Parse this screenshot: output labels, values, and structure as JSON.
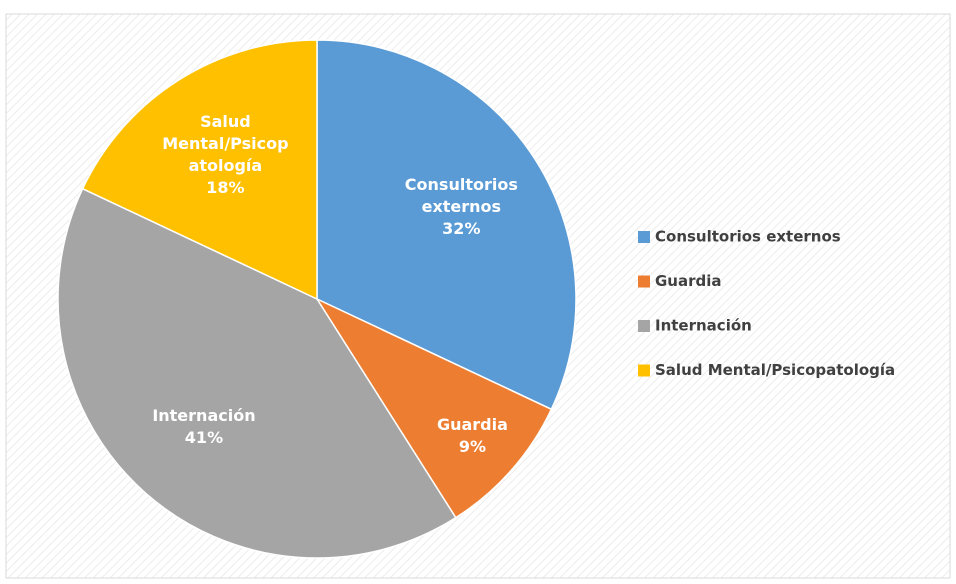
{
  "chart_data": {
    "type": "pie",
    "categories": [
      "Consultorios externos",
      "Guardia",
      "Internación",
      "Salud Mental/Psicopatología"
    ],
    "values": [
      32,
      9,
      41,
      18
    ],
    "value_labels": [
      "32%",
      "9%",
      "41%",
      "18%"
    ],
    "colors": [
      "#5b9bd5",
      "#ed7d31",
      "#a5a5a5",
      "#ffc000"
    ],
    "legend": "right"
  }
}
